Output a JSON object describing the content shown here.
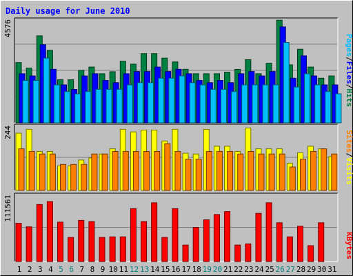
{
  "chart_data": {
    "type": "bar",
    "title": "Daily usage for June 2010",
    "categories": [
      "1",
      "2",
      "3",
      "4",
      "5",
      "6",
      "7",
      "8",
      "9",
      "10",
      "11",
      "12",
      "13",
      "14",
      "15",
      "16",
      "17",
      "18",
      "19",
      "20",
      "21",
      "22",
      "23",
      "24",
      "25",
      "26",
      "27",
      "28",
      "29",
      "30",
      "31"
    ],
    "weekend_days": [
      5,
      6,
      12,
      13,
      19,
      20,
      26,
      27
    ],
    "panels": [
      {
        "name": "requests",
        "max_label": "4576",
        "ylim": [
          0,
          4576
        ],
        "series": [
          {
            "name": "Hits",
            "color": "#008040",
            "values": [
              2700,
              2450,
              3900,
              3250,
              1930,
              1930,
              2350,
              2500,
              2200,
              2290,
              2760,
              2630,
              3100,
              3100,
              2900,
              2730,
              2400,
              2200,
              2200,
              2200,
              2270,
              2400,
              2830,
              2200,
              2670,
              4600,
              2600,
              3300,
              2500,
              2000,
              2100
            ]
          },
          {
            "name": "Files",
            "color": "#0000ff",
            "values": [
              2200,
              2100,
              3500,
              2400,
              1700,
              1500,
              2100,
              2200,
              1900,
              1800,
              2200,
              2300,
              2300,
              2500,
              2300,
              2400,
              2200,
              1900,
              1800,
              1900,
              1800,
              2200,
              2300,
              2100,
              2300,
              4300,
              2000,
              3000,
              2100,
              1700,
              1700
            ]
          },
          {
            "name": "Pages",
            "color": "#00c0ff",
            "values": [
              1900,
              1900,
              2900,
              1700,
              1400,
              1300,
              1400,
              1500,
              1500,
              1500,
              1700,
              1800,
              1800,
              2000,
              2000,
              2100,
              1800,
              1700,
              1500,
              1500,
              1400,
              1700,
              1700,
              1700,
              1700,
              3600,
              1600,
              2200,
              1700,
              1400,
              1300
            ]
          }
        ]
      },
      {
        "name": "visits",
        "max_label": "244",
        "ylim": [
          0,
          244
        ],
        "series": [
          {
            "name": "Visits",
            "color": "#ffff00",
            "values": [
              220,
              235,
              150,
              150,
              95,
              95,
              117,
              125,
              140,
              160,
              235,
              225,
              232,
              232,
              190,
              235,
              143,
              140,
              235,
              170,
              170,
              150,
              240,
              160,
              160,
              160,
              105,
              145,
              170,
              160,
              130
            ]
          },
          {
            "name": "Sites",
            "color": "#ff8000",
            "values": [
              160,
              150,
              140,
              140,
              100,
              100,
              100,
              140,
              140,
              150,
              150,
              150,
              150,
              150,
              180,
              150,
              120,
              120,
              150,
              150,
              150,
              140,
              150,
              140,
              140,
              140,
              90,
              120,
              150,
              160,
              140
            ]
          }
        ]
      },
      {
        "name": "kbytes",
        "max_label": "111561",
        "ylim": [
          0,
          111561
        ],
        "series": [
          {
            "name": "KBytes",
            "color": "#ff0000",
            "values": [
              65000,
              59000,
              97000,
              102000,
              67000,
              41000,
              70000,
              68000,
              41000,
              42000,
              42000,
              90000,
              68000,
              100000,
              41000,
              90000,
              28000,
              58000,
              71000,
              80000,
              85000,
              28000,
              30000,
              82000,
              100000,
              66000,
              42000,
              60000,
              27000,
              66000,
              0
            ]
          }
        ]
      }
    ]
  }
}
